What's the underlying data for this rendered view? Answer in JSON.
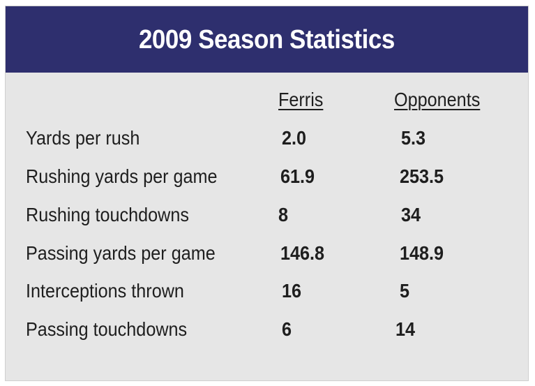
{
  "title": "2009 Season Statistics",
  "columns": {
    "team": "Ferris",
    "opponents": "Opponents"
  },
  "rows": [
    {
      "label": "Yards per rush",
      "ferris": "2.0",
      "opponents": "5.3"
    },
    {
      "label": "Rushing yards per game",
      "ferris": "61.9",
      "opponents": "253.5"
    },
    {
      "label": "Rushing touchdowns",
      "ferris": "8",
      "opponents": "34"
    },
    {
      "label": "Passing yards per game",
      "ferris": "146.8",
      "opponents": "148.9"
    },
    {
      "label": "Interceptions thrown",
      "ferris": "16",
      "opponents": "5"
    },
    {
      "label": "Passing touchdowns",
      "ferris": "6",
      "opponents": "14"
    }
  ],
  "colors": {
    "header_bg": "#2e2f6e",
    "panel_bg": "#e6e6e6",
    "text": "#1e1e1e"
  }
}
